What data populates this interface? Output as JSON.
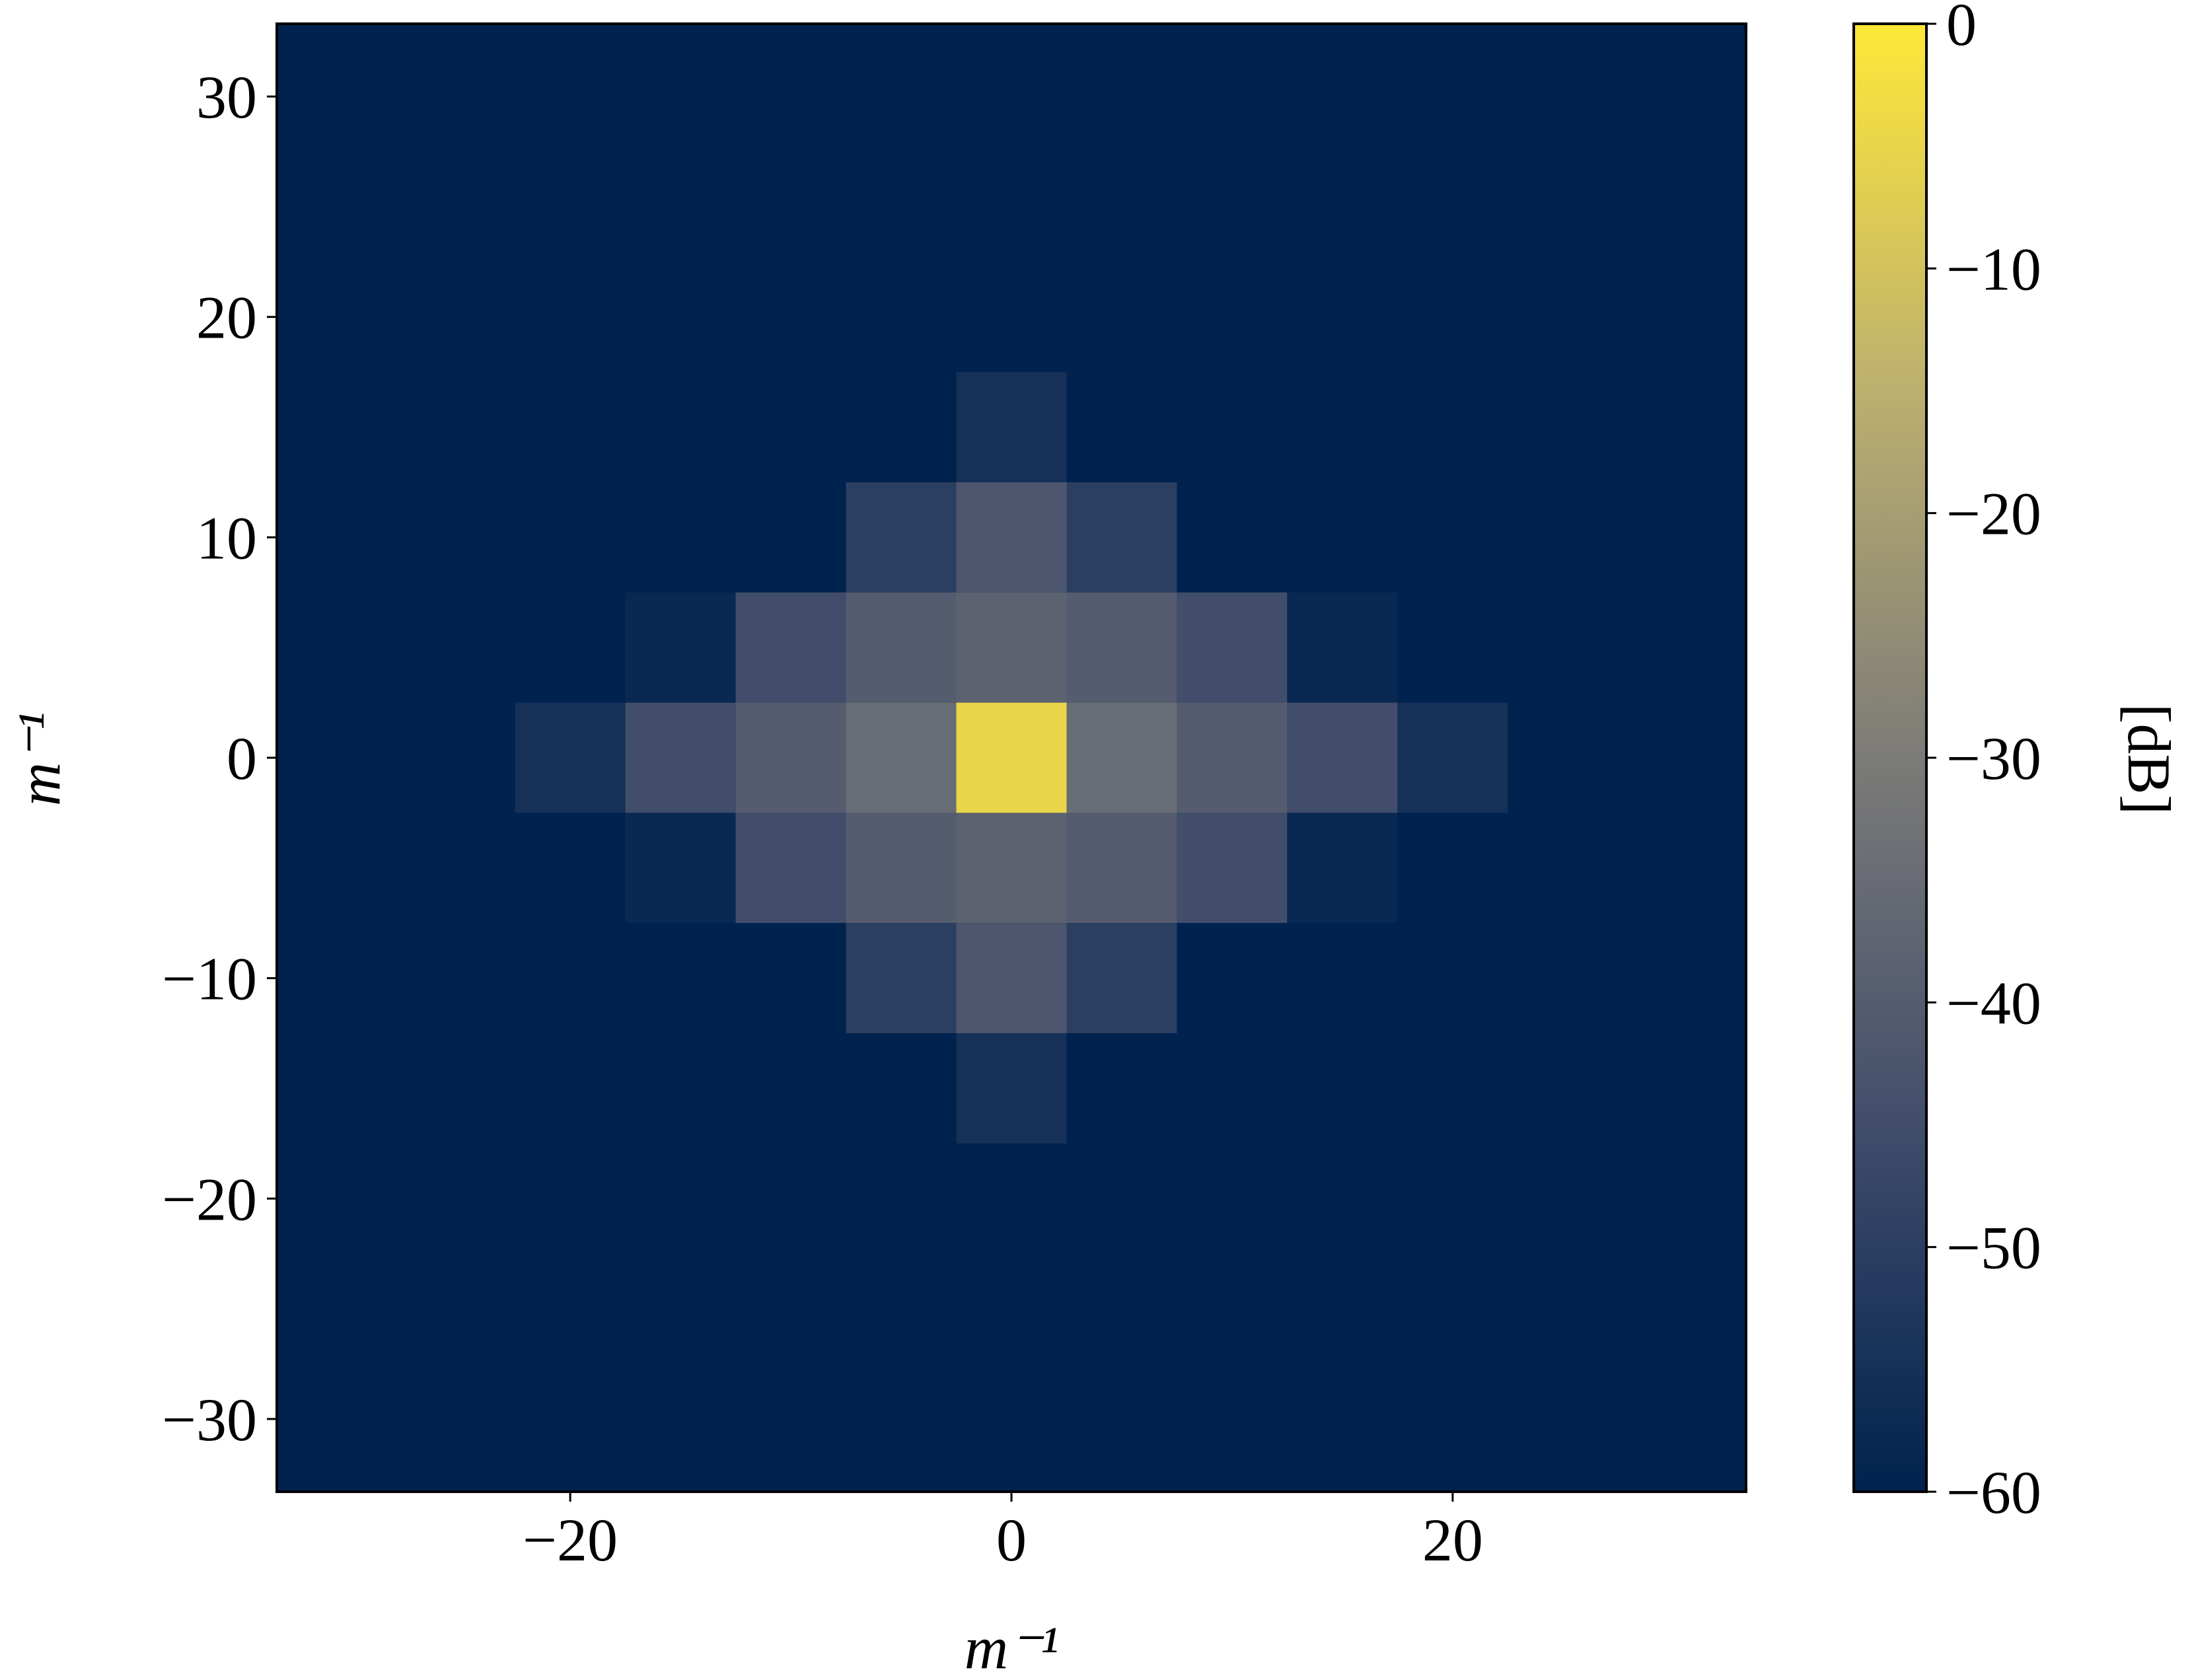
{
  "chart_data": {
    "type": "heatmap",
    "xlabel": "m⁻¹",
    "ylabel": "m⁻¹",
    "colorbar_label": "[dB]",
    "x": [
      -30,
      -25,
      -20,
      -15,
      -10,
      -5,
      0,
      5,
      10,
      15,
      20,
      25,
      30
    ],
    "y": [
      30,
      25,
      20,
      15,
      10,
      5,
      0,
      -5,
      -10,
      -15,
      -20,
      -25,
      -30
    ],
    "z": [
      [
        -60,
        -60,
        -60,
        -60,
        -60,
        -60,
        -60,
        -60,
        -60,
        -60,
        -60,
        -60,
        -60
      ],
      [
        -60,
        -60,
        -60,
        -60,
        -60,
        -60,
        -60,
        -60,
        -60,
        -60,
        -60,
        -60,
        -60
      ],
      [
        -60,
        -60,
        -60,
        -60,
        -60,
        -60,
        -60,
        -60,
        -60,
        -60,
        -60,
        -60,
        -60
      ],
      [
        -60,
        -60,
        -60,
        -60,
        -60,
        -60,
        -55,
        -60,
        -60,
        -60,
        -60,
        -60,
        -60
      ],
      [
        -60,
        -60,
        -60,
        -60,
        -60,
        -50,
        -42,
        -50,
        -60,
        -60,
        -60,
        -60,
        -60
      ],
      [
        -60,
        -60,
        -60,
        -58,
        -45,
        -40,
        -38,
        -40,
        -45,
        -58,
        -60,
        -60,
        -60
      ],
      [
        -60,
        -60,
        -55,
        -45,
        -40,
        -35,
        -5,
        -35,
        -40,
        -45,
        -55,
        -60,
        -60
      ],
      [
        -60,
        -60,
        -60,
        -58,
        -45,
        -40,
        -38,
        -40,
        -45,
        -58,
        -60,
        -60,
        -60
      ],
      [
        -60,
        -60,
        -60,
        -60,
        -60,
        -50,
        -42,
        -50,
        -60,
        -60,
        -60,
        -60,
        -60
      ],
      [
        -60,
        -60,
        -60,
        -60,
        -60,
        -60,
        -55,
        -60,
        -60,
        -60,
        -60,
        -60,
        -60
      ],
      [
        -60,
        -60,
        -60,
        -60,
        -60,
        -60,
        -60,
        -60,
        -60,
        -60,
        -60,
        -60,
        -60
      ],
      [
        -60,
        -60,
        -60,
        -60,
        -60,
        -60,
        -60,
        -60,
        -60,
        -60,
        -60,
        -60,
        -60
      ],
      [
        -60,
        -60,
        -60,
        -60,
        -60,
        -60,
        -60,
        -60,
        -60,
        -60,
        -60,
        -60,
        -60
      ]
    ],
    "cell_size": 5,
    "xlim": [
      -33.3,
      33.3
    ],
    "ylim": [
      -33.3,
      33.3
    ],
    "xticks": [
      {
        "value": -20,
        "label": "−20"
      },
      0,
      20
    ],
    "yticks": [
      {
        "value": -30,
        "label": "−30"
      },
      {
        "value": -20,
        "label": "−20"
      },
      {
        "value": -10,
        "label": "−10"
      },
      0,
      10,
      20,
      30
    ],
    "clim": [
      -60,
      0
    ],
    "cticks": [
      {
        "value": -60,
        "label": "−60"
      },
      {
        "value": -50,
        "label": "−50"
      },
      {
        "value": -40,
        "label": "−40"
      },
      {
        "value": -30,
        "label": "−30"
      },
      {
        "value": -20,
        "label": "−20"
      },
      {
        "value": -10,
        "label": "−10"
      },
      0
    ],
    "colormap": [
      "#00224e",
      "#414d6b",
      "#7c7b78",
      "#bcaf6f",
      "#fee838"
    ]
  }
}
